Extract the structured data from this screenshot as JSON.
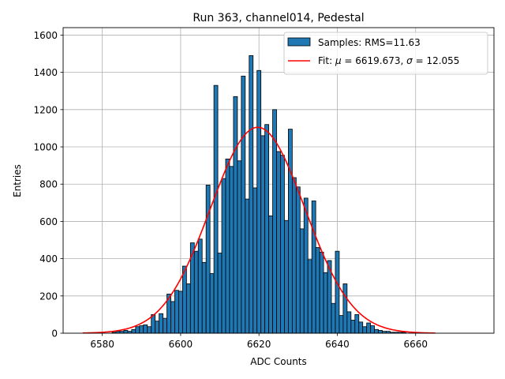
{
  "chart_data": {
    "type": "bar",
    "title": "Run 363, channel014, Pedestal",
    "xlabel": "ADC Counts",
    "ylabel": "Entries",
    "xlim": [
      6570,
      6680
    ],
    "ylim": [
      0,
      1640
    ],
    "xticks": [
      6580,
      6600,
      6620,
      6640,
      6660
    ],
    "yticks": [
      0,
      200,
      400,
      600,
      800,
      1000,
      1200,
      1400,
      1600
    ],
    "grid": true,
    "legend_position": "top-right",
    "bin_width": 1,
    "series": [
      {
        "name": "Samples: RMS=11.63",
        "kind": "histogram",
        "color": "#1f77b4",
        "edgecolor": "#000000",
        "x": [
          6583,
          6584,
          6585,
          6586,
          6587,
          6588,
          6589,
          6590,
          6591,
          6592,
          6593,
          6594,
          6595,
          6596,
          6597,
          6598,
          6599,
          6600,
          6601,
          6602,
          6603,
          6604,
          6605,
          6606,
          6607,
          6608,
          6609,
          6610,
          6611,
          6612,
          6613,
          6614,
          6615,
          6616,
          6617,
          6618,
          6619,
          6620,
          6621,
          6622,
          6623,
          6624,
          6625,
          6626,
          6627,
          6628,
          6629,
          6630,
          6631,
          6632,
          6633,
          6634,
          6635,
          6636,
          6637,
          6638,
          6639,
          6640,
          6641,
          6642,
          6643,
          6644,
          6645,
          6646,
          6647,
          6648,
          6649,
          6650,
          6651,
          6652,
          6653,
          6654,
          6655,
          6656,
          6657
        ],
        "values": [
          5,
          10,
          10,
          15,
          10,
          20,
          35,
          40,
          45,
          35,
          100,
          65,
          105,
          80,
          210,
          170,
          230,
          225,
          360,
          265,
          485,
          440,
          505,
          380,
          795,
          320,
          1330,
          430,
          830,
          935,
          895,
          1270,
          925,
          1380,
          720,
          1490,
          780,
          1410,
          1060,
          1120,
          630,
          1200,
          975,
          955,
          605,
          1095,
          835,
          785,
          560,
          725,
          395,
          710,
          460,
          435,
          325,
          390,
          160,
          440,
          95,
          265,
          115,
          70,
          100,
          60,
          35,
          55,
          40,
          20,
          15,
          10,
          10,
          5,
          5,
          5,
          5
        ]
      },
      {
        "name": "Fit: $\\mu$ = 6619.673, $\\sigma$ = 12.055",
        "kind": "gaussian",
        "color": "#ff0000",
        "mu": 6619.673,
        "sigma": 12.055,
        "amplitude": 1105,
        "x_range": [
          6575,
          6665
        ]
      }
    ]
  }
}
